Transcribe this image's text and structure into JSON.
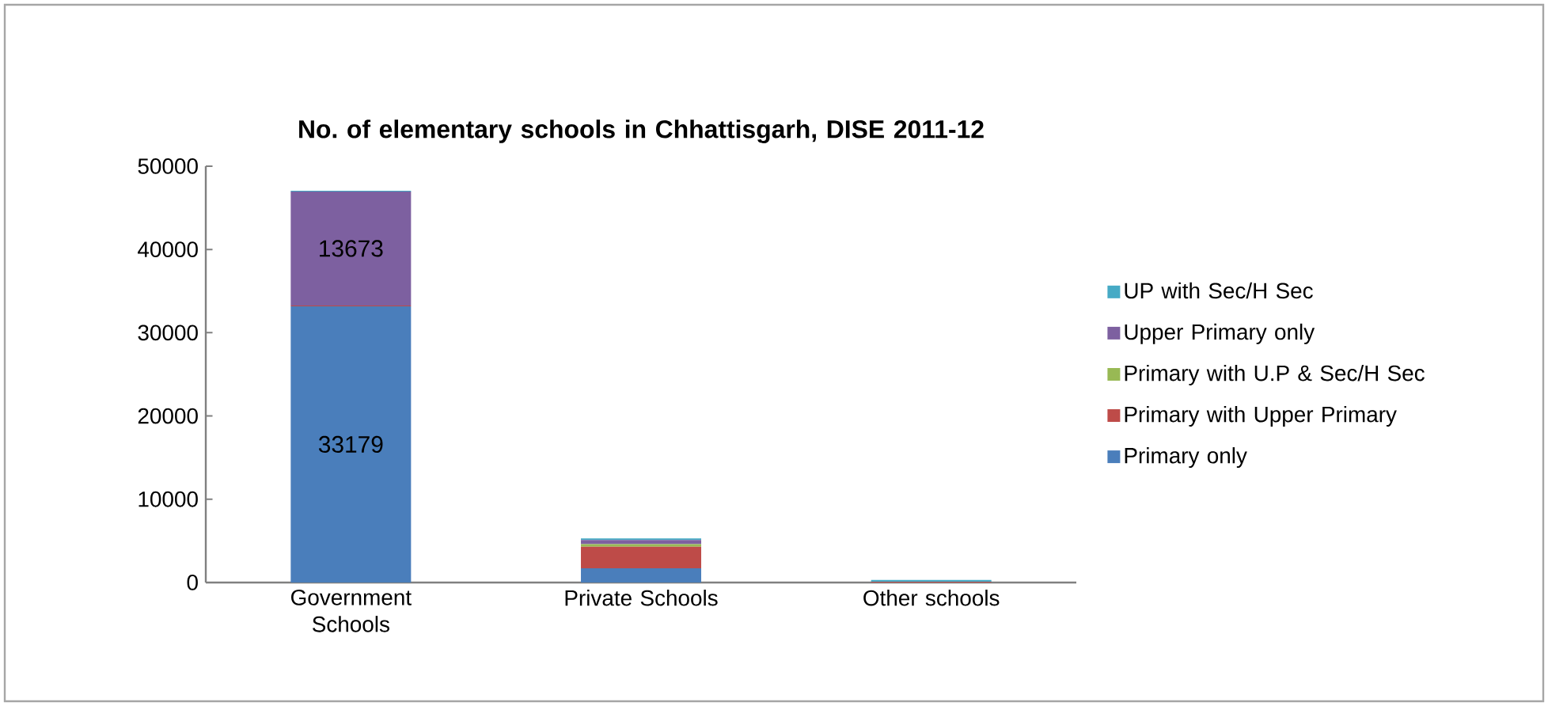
{
  "chart_data": {
    "type": "bar",
    "title": "No. of elementary schools in Chhattisgarh, DISE 2011-12",
    "categories": [
      "Government Schools",
      "Private Schools",
      "Other schools"
    ],
    "stacked": true,
    "legend": "right",
    "ylim": [
      0,
      50000
    ],
    "yticks": [
      0,
      10000,
      20000,
      30000,
      40000,
      50000
    ],
    "series": [
      {
        "name": "Primary only",
        "color": "#4a7ebb",
        "values": [
          33179,
          1700,
          0
        ],
        "value_labels": [
          "33179",
          null,
          null
        ]
      },
      {
        "name": "Primary with Upper Primary",
        "color": "#be4b48",
        "values": [
          100,
          2600,
          100
        ],
        "value_labels": [
          null,
          null,
          null
        ]
      },
      {
        "name": "Primary with U.P & Sec/H Sec",
        "color": "#98b954",
        "values": [
          0,
          300,
          0
        ],
        "value_labels": [
          null,
          null,
          null
        ]
      },
      {
        "name": "Upper Primary only",
        "color": "#7d60a0",
        "values": [
          13673,
          500,
          0
        ],
        "value_labels": [
          "13673",
          null,
          null
        ]
      },
      {
        "name": "UP with Sec/H Sec",
        "color": "#46aac5",
        "values": [
          100,
          200,
          200
        ],
        "value_labels": [
          null,
          null,
          null
        ]
      }
    ]
  }
}
